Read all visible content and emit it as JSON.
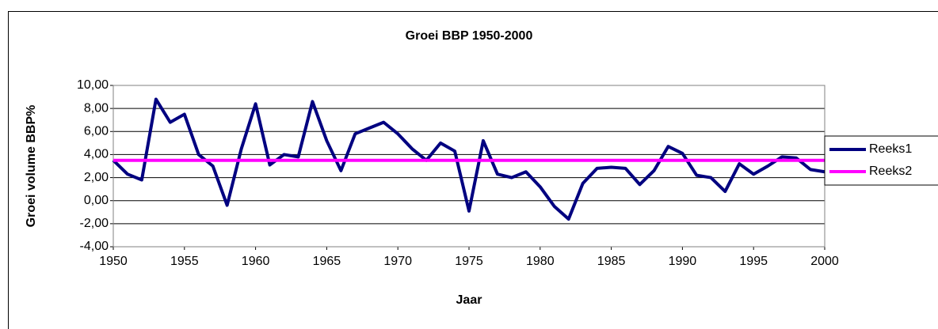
{
  "chart_data": {
    "type": "line",
    "title": "Groei BBP 1950-2000",
    "x_label": "Jaar",
    "y_label": "Groei volume BBP%",
    "x": [
      1950,
      1951,
      1952,
      1953,
      1954,
      1955,
      1956,
      1957,
      1958,
      1959,
      1960,
      1961,
      1962,
      1963,
      1964,
      1965,
      1966,
      1967,
      1968,
      1969,
      1970,
      1971,
      1972,
      1973,
      1974,
      1975,
      1976,
      1977,
      1978,
      1979,
      1980,
      1981,
      1982,
      1983,
      1984,
      1985,
      1986,
      1987,
      1988,
      1989,
      1990,
      1991,
      1992,
      1993,
      1994,
      1995,
      1996,
      1997,
      1998,
      1999,
      2000
    ],
    "series": [
      {
        "name": "Reeks1",
        "color": "#000080",
        "values": [
          3.5,
          2.3,
          1.8,
          8.8,
          6.8,
          7.5,
          4.0,
          3.0,
          -0.4,
          4.5,
          8.4,
          3.1,
          4.0,
          3.8,
          8.6,
          5.2,
          2.6,
          5.8,
          6.3,
          6.8,
          5.8,
          4.5,
          3.5,
          5.0,
          4.3,
          -0.9,
          5.2,
          2.3,
          2.0,
          2.5,
          1.2,
          -0.5,
          -1.6,
          1.5,
          2.8,
          2.9,
          2.8,
          1.4,
          2.6,
          4.7,
          4.1,
          2.2,
          2.0,
          0.8,
          3.2,
          2.3,
          3.0,
          3.8,
          3.7,
          2.7,
          2.5
        ]
      },
      {
        "name": "Reeks2",
        "color": "#FF00FF",
        "values": [
          3.5,
          3.5,
          3.5,
          3.5,
          3.5,
          3.5,
          3.5,
          3.5,
          3.5,
          3.5,
          3.5,
          3.5,
          3.5,
          3.5,
          3.5,
          3.5,
          3.5,
          3.5,
          3.5,
          3.5,
          3.5,
          3.5,
          3.5,
          3.5,
          3.5,
          3.5,
          3.5,
          3.5,
          3.5,
          3.5,
          3.5,
          3.5,
          3.5,
          3.5,
          3.5,
          3.5,
          3.5,
          3.5,
          3.5,
          3.5,
          3.5,
          3.5,
          3.5,
          3.5,
          3.5,
          3.5,
          3.5,
          3.5,
          3.5,
          3.5,
          3.5
        ]
      }
    ],
    "xlim": [
      1950,
      2000
    ],
    "xticks": [
      1950,
      1955,
      1960,
      1965,
      1970,
      1975,
      1980,
      1985,
      1990,
      1995,
      2000
    ],
    "ylim": [
      -4,
      10
    ],
    "yticks": [
      {
        "value": -4,
        "label": "-4,00"
      },
      {
        "value": -2,
        "label": "-2,00"
      },
      {
        "value": 0,
        "label": "0,00"
      },
      {
        "value": 2,
        "label": "2,00"
      },
      {
        "value": 4,
        "label": "4,00"
      },
      {
        "value": 6,
        "label": "6,00"
      },
      {
        "value": 8,
        "label": "8,00"
      },
      {
        "value": 10,
        "label": "10,00"
      }
    ],
    "grid": true,
    "legend": "right"
  }
}
